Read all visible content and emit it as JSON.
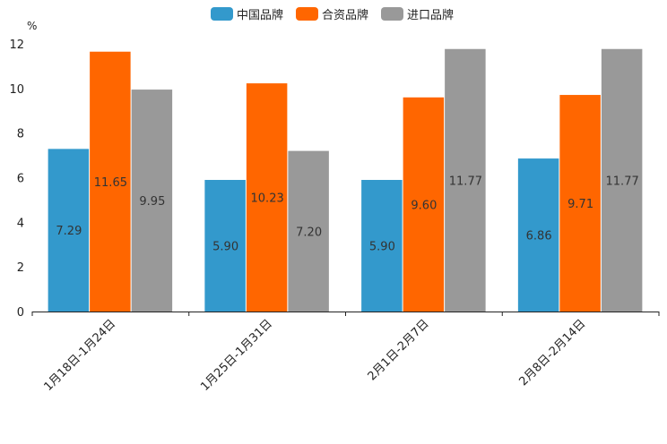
{
  "chart_data": {
    "type": "bar",
    "unit": "%",
    "categories": [
      "1月18日-1月24日",
      "1月25日-1月31日",
      "2月1日-2月7日",
      "2月8日-2月14日"
    ],
    "series": [
      {
        "name": "中国品牌",
        "color": "#3399cc",
        "values": [
          7.29,
          5.9,
          5.9,
          6.86
        ],
        "labels": [
          "7.29",
          "5.90",
          "5.90",
          "6.86"
        ]
      },
      {
        "name": "合资品牌",
        "color": "#ff6600",
        "values": [
          11.65,
          10.23,
          9.6,
          9.71
        ],
        "labels": [
          "11.65",
          "10.23",
          "9.60",
          "9.71"
        ]
      },
      {
        "name": "进口品牌",
        "color": "#999999",
        "values": [
          9.95,
          7.2,
          11.77,
          11.77
        ],
        "labels": [
          "9.95",
          "7.20",
          "11.77",
          "11.77"
        ]
      }
    ],
    "ylim": [
      0,
      12
    ],
    "yticks": [
      0,
      2,
      4,
      6,
      8,
      10,
      12
    ],
    "ytick_labels": [
      "0",
      "2",
      "4",
      "6",
      "8",
      "10",
      "12"
    ],
    "legend_position": "top-center",
    "grid": false
  }
}
